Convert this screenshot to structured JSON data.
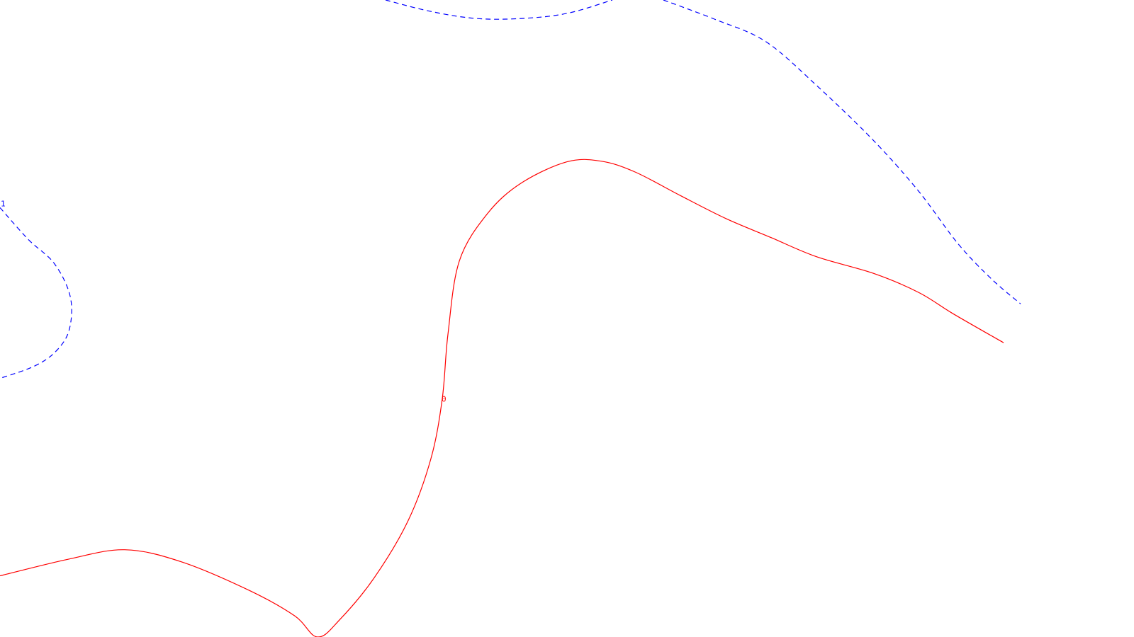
{
  "chart_data": {
    "type": "contour",
    "title": "",
    "xlabel": "",
    "ylabel": "",
    "levels": [
      {
        "level": 0,
        "label": "0",
        "color": "#ff0000",
        "style": "solid",
        "segments": [
          {
            "points": [
              [
                0.0,
                0.096
              ],
              [
                0.06,
                0.122
              ],
              [
                0.11,
                0.137
              ],
              [
                0.16,
                0.118
              ],
              [
                0.22,
                0.073
              ],
              [
                0.26,
                0.033
              ],
              [
                0.28,
                0.0
              ],
              [
                0.3,
                0.028
              ],
              [
                0.33,
                0.093
              ],
              [
                0.36,
                0.183
              ],
              [
                0.38,
                0.28
              ],
              [
                0.39,
                0.374
              ],
              [
                0.395,
                0.475
              ],
              [
                0.405,
                0.59
              ],
              [
                0.43,
                0.665
              ],
              [
                0.46,
                0.713
              ],
              [
                0.5,
                0.746
              ],
              [
                0.53,
                0.747
              ],
              [
                0.56,
                0.73
              ],
              [
                0.6,
                0.693
              ],
              [
                0.64,
                0.657
              ],
              [
                0.68,
                0.627
              ],
              [
                0.72,
                0.597
              ],
              [
                0.77,
                0.571
              ],
              [
                0.81,
                0.541
              ],
              [
                0.84,
                0.508
              ],
              [
                0.885,
                0.462
              ]
            ]
          }
        ]
      },
      {
        "level": 1,
        "label": "1",
        "color": "#0000ff",
        "style": "dashed",
        "segments": [
          {
            "points": [
              [
                0.0,
                0.674
              ],
              [
                0.025,
                0.624
              ],
              [
                0.048,
                0.586
              ],
              [
                0.062,
                0.534
              ],
              [
                0.061,
                0.482
              ],
              [
                0.049,
                0.448
              ],
              [
                0.03,
                0.425
              ],
              [
                0.0,
                0.406
              ]
            ]
          },
          {
            "points": [
              [
                0.34,
                1.0
              ],
              [
                0.38,
                0.982
              ],
              [
                0.42,
                0.971
              ],
              [
                0.46,
                0.971
              ],
              [
                0.5,
                0.979
              ],
              [
                0.54,
                1.0
              ]
            ]
          },
          {
            "points": [
              [
                0.585,
                1.0
              ],
              [
                0.63,
                0.97
              ],
              [
                0.675,
                0.935
              ],
              [
                0.72,
                0.866
              ],
              [
                0.77,
                0.78
              ],
              [
                0.81,
                0.7
              ],
              [
                0.845,
                0.617
              ],
              [
                0.875,
                0.561
              ],
              [
                0.9,
                0.523
              ]
            ]
          }
        ]
      }
    ],
    "axes_visible": false,
    "grid": false
  }
}
